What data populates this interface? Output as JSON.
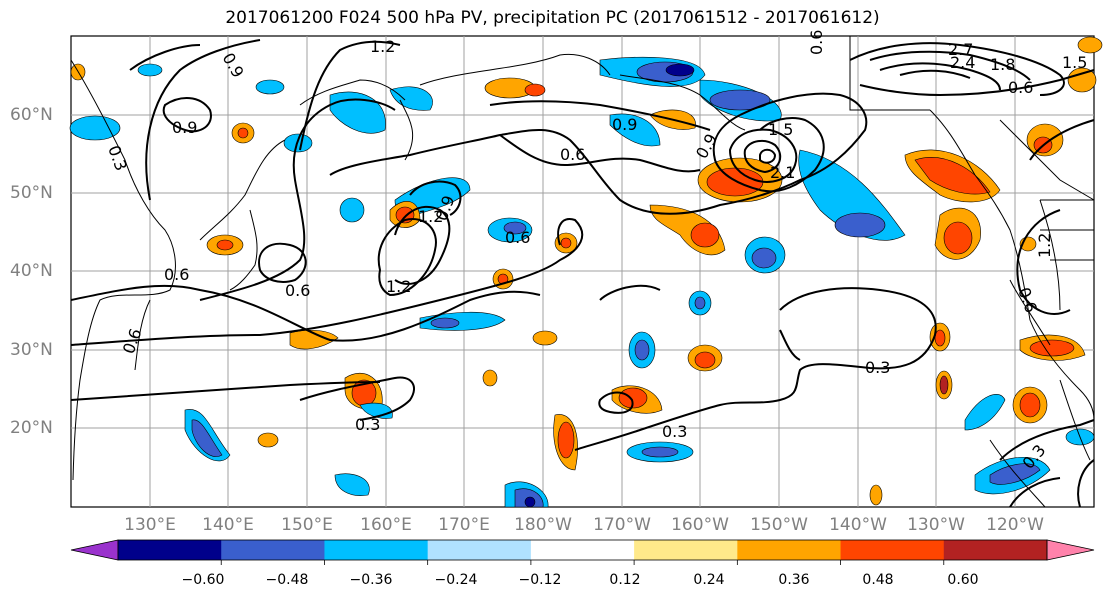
{
  "title": "2017061200 F024 500 hPa PV, precipitation PC (2017061512 - 2017061612)",
  "latitude_labels": [
    "60°N",
    "50°N",
    "40°N",
    "30°N",
    "20°N"
  ],
  "longitude_labels": [
    "130°E",
    "140°E",
    "150°E",
    "160°E",
    "170°E",
    "180°W",
    "170°W",
    "160°W",
    "150°W",
    "140°W",
    "130°W",
    "120°W"
  ],
  "contour_labels": [
    "1.2",
    "0.9",
    "0.9",
    "0.3",
    "0.9",
    "0.6",
    "0.9",
    "1.5",
    "2.1",
    "2.7",
    "2.4",
    "1.8",
    "1.5",
    "0.6",
    "0.6",
    "1.2",
    "1.2",
    "0.9",
    "0.6",
    "0.6",
    "0.6",
    "0.6",
    "1.2",
    "0.3",
    "0.6",
    "0.3",
    "0.3",
    "0.3"
  ],
  "colorbar": {
    "ticks": [
      "−0.60",
      "−0.48",
      "−0.36",
      "−0.24",
      "−0.12",
      "0.12",
      "0.24",
      "0.36",
      "0.48",
      "0.60"
    ],
    "colors": [
      "#9a32cd",
      "#00008b",
      "#3a5fcd",
      "#00bfff",
      "#b0e2ff",
      "#ffffff",
      "#ffe98a",
      "#ffa500",
      "#ff4500",
      "#b22222",
      "#ff82ab"
    ]
  }
}
